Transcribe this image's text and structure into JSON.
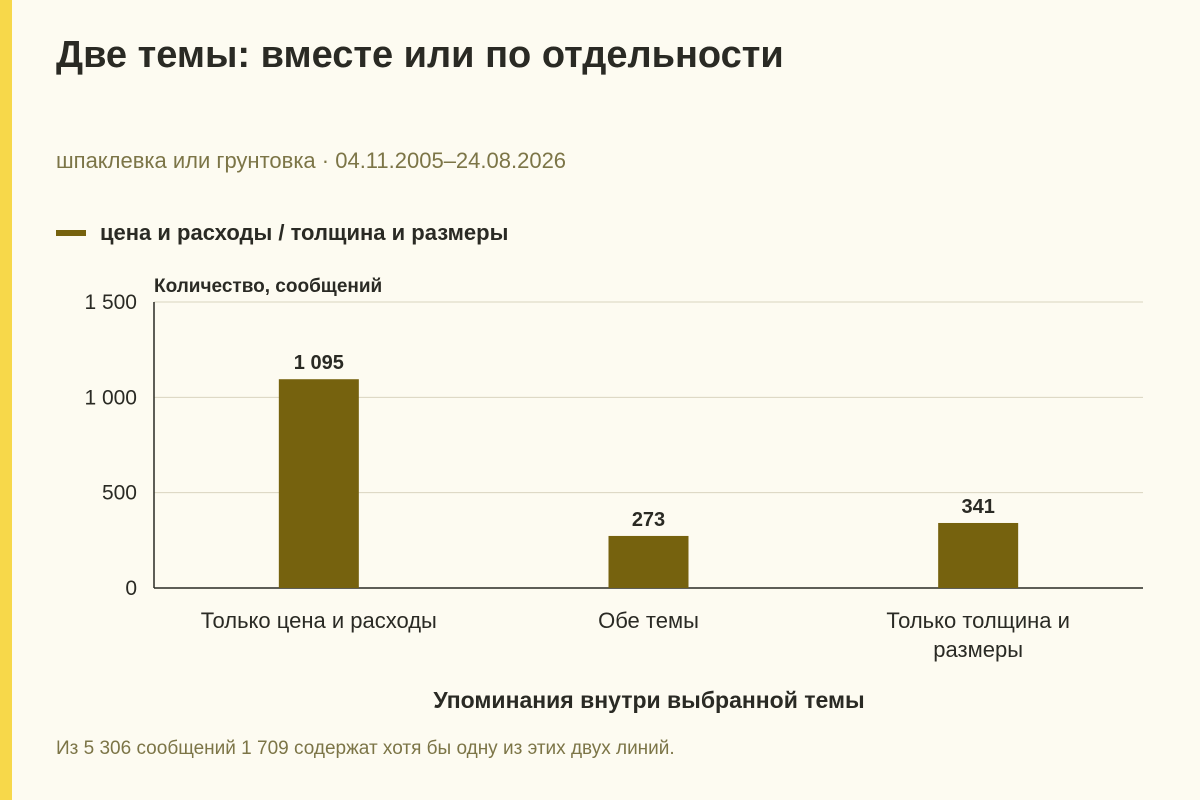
{
  "title": "Две темы: вместе или по отдельности",
  "subtitle": "шпаклевка или грунтовка · 04.11.2005–24.08.2026",
  "footnote": "Из 5 306 сообщений 1 709 содержат хотя бы одну из этих двух линий.",
  "colors": {
    "bar": "#76620e",
    "accent": "#f7d84a",
    "grid": "#d9d4c0"
  },
  "chart_data": {
    "type": "bar",
    "title": "Две темы: вместе или по отдельности",
    "ylabel": "Количество, сообщений",
    "xlabel": "Упоминания внутри выбранной темы",
    "categories": [
      "Только цена и расходы",
      "Обе темы",
      "Только толщина и размеры"
    ],
    "series": [
      {
        "name": "цена и расходы / толщина и размеры",
        "values": [
          1095,
          273,
          341
        ]
      }
    ],
    "value_labels": [
      "1 095",
      "273",
      "341"
    ],
    "ylim": [
      0,
      1500
    ],
    "yticks": [
      0,
      500,
      1000,
      1500
    ],
    "ytick_labels": [
      "0",
      "500",
      "1 000",
      "1 500"
    ],
    "grid": true,
    "legend": "top-left"
  }
}
